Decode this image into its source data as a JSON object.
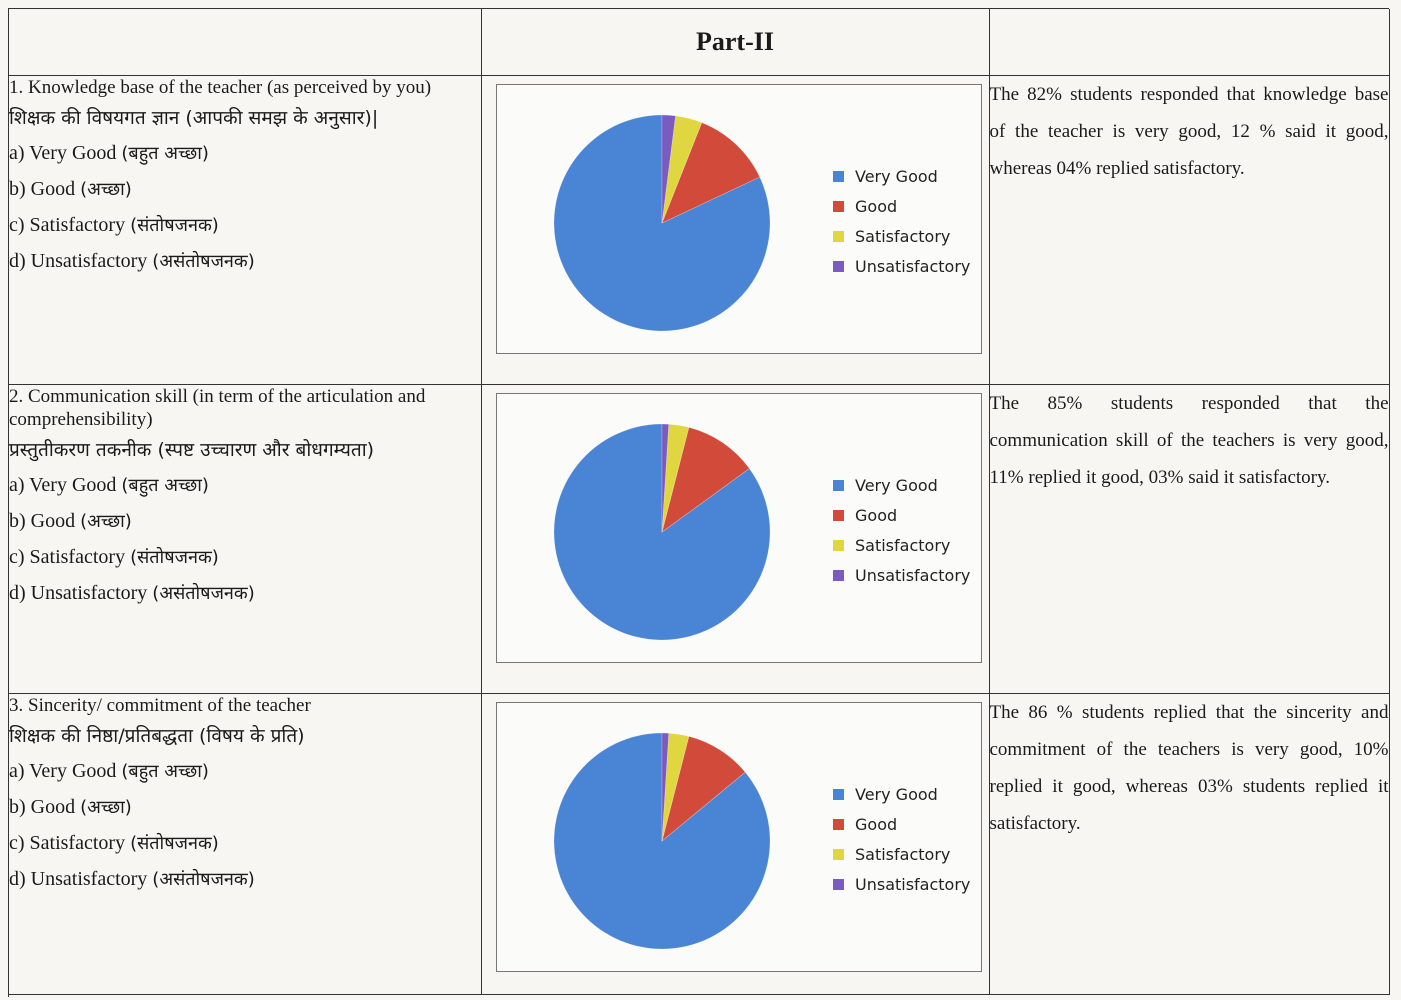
{
  "header": {
    "title": "Part-II"
  },
  "colors": {
    "very_good": "#4a84d4",
    "good": "#d24a3a",
    "satisfactory": "#e0d640",
    "unsatisfactory": "#7a5cc0"
  },
  "questions": [
    {
      "title": "1. Knowledge base of the teacher (as perceived by you)",
      "hindi": "शिक्षक की विषयगत ज्ञान (आपकी समझ के अनुसार)|",
      "options": [
        {
          "label": "a) Very Good",
          "hindi": "(बहुत अच्छा)"
        },
        {
          "label": "b) Good",
          "hindi": "(अच्छा)"
        },
        {
          "label": "c) Satisfactory",
          "hindi": "(संतोषजनक)"
        },
        {
          "label": "d) Unsatisfactory",
          "hindi": "(असंतोषजनक)"
        }
      ],
      "comment": "The 82% students responded that knowledge base of the teacher is very good, 12 % said it good, whereas 04% replied satisfactory."
    },
    {
      "title": "2. Communication skill (in term of the articulation and comprehensibility)",
      "hindi": "प्रस्तुतीकरण तकनीक (स्पष्ट उच्चारण और बोधगम्यता)",
      "options": [
        {
          "label": "a) Very Good",
          "hindi": "(बहुत अच्छा)"
        },
        {
          "label": "b) Good",
          "hindi": "(अच्छा)"
        },
        {
          "label": "c) Satisfactory",
          "hindi": "(संतोषजनक)"
        },
        {
          "label": "d) Unsatisfactory",
          "hindi": "(असंतोषजनक)"
        }
      ],
      "comment": "The 85% students responded that the communication skill of the teachers is very good, 11% replied it good, 03% said it satisfactory."
    },
    {
      "title": "3. Sincerity/ commitment of the teacher",
      "hindi": "शिक्षक की निष्ठा/प्रतिबद्धता (विषय के प्रति)",
      "options": [
        {
          "label": "a) Very Good",
          "hindi": "(बहुत अच्छा)"
        },
        {
          "label": "b) Good",
          "hindi": "(अच्छा)"
        },
        {
          "label": "c) Satisfactory",
          "hindi": "(संतोषजनक)"
        },
        {
          "label": "d) Unsatisfactory",
          "hindi": "(असंतोषजनक)"
        }
      ],
      "comment": "The 86 % students replied that the sincerity and commitment of the teachers is very good, 10% replied it good, whereas 03% students replied it satisfactory."
    }
  ],
  "chart_data": [
    {
      "type": "pie",
      "categories": [
        "Very Good",
        "Good",
        "Satisfactory",
        "Unsatisfactory"
      ],
      "values": [
        82,
        12,
        4,
        2
      ],
      "legend_position": "right"
    },
    {
      "type": "pie",
      "categories": [
        "Very Good",
        "Good",
        "Satisfactory",
        "Unsatisfactory"
      ],
      "values": [
        85,
        11,
        3,
        1
      ],
      "legend_position": "right"
    },
    {
      "type": "pie",
      "categories": [
        "Very Good",
        "Good",
        "Satisfactory",
        "Unsatisfactory"
      ],
      "values": [
        86,
        10,
        3,
        1
      ],
      "legend_position": "right"
    }
  ]
}
